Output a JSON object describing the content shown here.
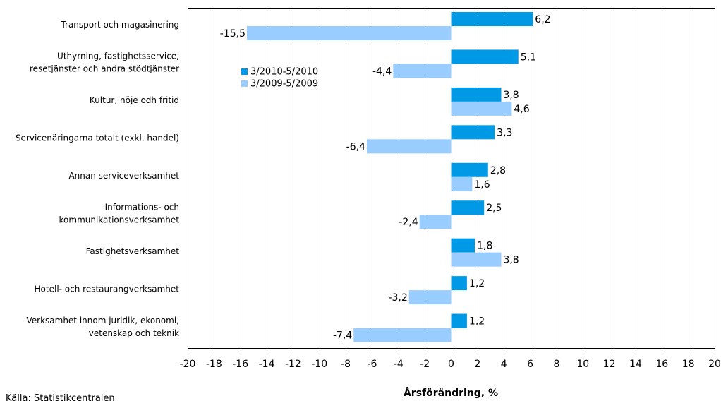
{
  "chart_data": {
    "type": "bar",
    "orientation": "horizontal",
    "categories": [
      [
        "Transport och magasinering"
      ],
      [
        "Uthyrning, fastighetsservice,",
        "resetjänster och andra stödtjänster"
      ],
      [
        "Kultur, nöje odh fritid"
      ],
      [
        "Servicenäringarna totalt (exkl. handel)"
      ],
      [
        "Annan serviceverksamhet"
      ],
      [
        "Informations- och",
        "kommunikationsverksamhet"
      ],
      [
        "Fastighetsverksamhet"
      ],
      [
        "Hotell- och restaurangverksamhet"
      ],
      [
        "Verksamhet innom juridik, ekonomi,",
        "vetenskap och teknik"
      ]
    ],
    "series": [
      {
        "name": "3/2010-5/2010",
        "color": "#0099e6",
        "values": [
          6.2,
          5.1,
          3.8,
          3.3,
          2.8,
          2.5,
          1.8,
          1.2,
          1.2
        ],
        "labels": [
          "6,2",
          "5,1",
          "3,8",
          "3,3",
          "2,8",
          "2,5",
          "1,8",
          "1,2",
          "1,2"
        ]
      },
      {
        "name": "3/2009-5/2009",
        "color": "#99ccff",
        "values": [
          -15.5,
          -4.4,
          4.6,
          -6.4,
          1.6,
          -2.4,
          3.8,
          -3.2,
          -7.4
        ],
        "labels": [
          "-15,5",
          "-4,4",
          "4,6",
          "-6,4",
          "1,6",
          "-2,4",
          "3,8",
          "-3,2",
          "-7,4"
        ]
      }
    ],
    "xlim": [
      -20,
      20
    ],
    "xticks": [
      -20,
      -18,
      -16,
      -14,
      -12,
      -10,
      -8,
      -6,
      -4,
      -2,
      0,
      2,
      4,
      6,
      8,
      10,
      12,
      14,
      16,
      18,
      20
    ],
    "xlabel": "Årsförändring, %",
    "grid": "vertical",
    "legend": "upper-left inside plot"
  },
  "source": "Källa: Statistikcentralen"
}
